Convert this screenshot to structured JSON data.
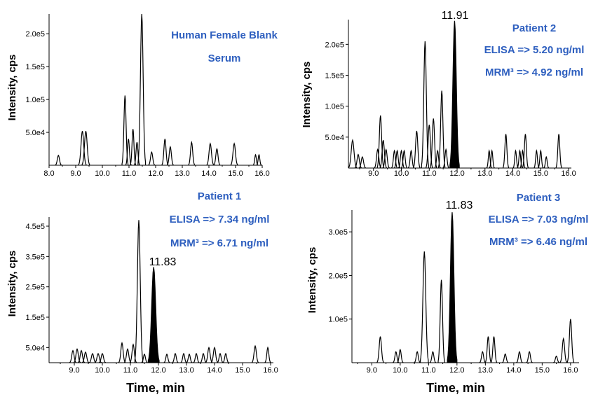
{
  "chart_data": [
    {
      "type": "line",
      "panel": "top-left",
      "title": "",
      "annotations": [
        "Human Female Blank",
        "Serum"
      ],
      "ylabel": "Intensity, cps",
      "xlabel": "",
      "xlim": [
        8.0,
        16.0
      ],
      "ylim": [
        0,
        230000
      ],
      "x_ticks": [
        "8.0",
        "9.0",
        "10.0",
        "11.0",
        "12.0",
        "13.0",
        "14.0",
        "15.0",
        "16.0"
      ],
      "y_ticks": [
        {
          "v": 50000,
          "label": "5.0e4"
        },
        {
          "v": 100000,
          "label": "1.0e5"
        },
        {
          "v": 150000,
          "label": "1.5e5"
        },
        {
          "v": 200000,
          "label": "2.0e5"
        }
      ],
      "peak_label": "",
      "peaks": [
        {
          "x": 8.35,
          "h": 15000,
          "w": 0.04,
          "fill": false
        },
        {
          "x": 9.25,
          "h": 52000,
          "w": 0.05,
          "fill": false
        },
        {
          "x": 9.38,
          "h": 52000,
          "w": 0.05,
          "fill": false
        },
        {
          "x": 10.85,
          "h": 106000,
          "w": 0.04,
          "fill": false
        },
        {
          "x": 10.98,
          "h": 40000,
          "w": 0.035,
          "fill": false
        },
        {
          "x": 11.15,
          "h": 55000,
          "w": 0.035,
          "fill": false
        },
        {
          "x": 11.3,
          "h": 35000,
          "w": 0.035,
          "fill": false
        },
        {
          "x": 11.48,
          "h": 230000,
          "w": 0.05,
          "fill": false
        },
        {
          "x": 11.85,
          "h": 20000,
          "w": 0.04,
          "fill": false
        },
        {
          "x": 12.35,
          "h": 40000,
          "w": 0.04,
          "fill": false
        },
        {
          "x": 12.55,
          "h": 28000,
          "w": 0.04,
          "fill": false
        },
        {
          "x": 13.35,
          "h": 35000,
          "w": 0.04,
          "fill": false
        },
        {
          "x": 14.05,
          "h": 33000,
          "w": 0.045,
          "fill": false
        },
        {
          "x": 14.3,
          "h": 25000,
          "w": 0.04,
          "fill": false
        },
        {
          "x": 14.95,
          "h": 33000,
          "w": 0.045,
          "fill": false
        },
        {
          "x": 15.75,
          "h": 16000,
          "w": 0.03,
          "fill": false
        },
        {
          "x": 15.88,
          "h": 16000,
          "w": 0.03,
          "fill": false
        }
      ]
    },
    {
      "type": "line",
      "panel": "top-right",
      "title": "",
      "annotations": [
        "Patient 2",
        "ELISA => 5.20 ng/ml",
        "MRM³ => 4.92 ng/ml"
      ],
      "ylabel": "Intensity, cps",
      "xlabel": "",
      "xlim": [
        8.1,
        16.1
      ],
      "ylim": [
        0,
        240000
      ],
      "x_ticks": [
        "9.0",
        "10.0",
        "11.0",
        "12.0",
        "13.0",
        "14.0",
        "15.0",
        "16.0"
      ],
      "y_ticks": [
        {
          "v": 50000,
          "label": "5.0e4"
        },
        {
          "v": 100000,
          "label": "1.0e5"
        },
        {
          "v": 150000,
          "label": "1.5e5"
        },
        {
          "v": 200000,
          "label": "2.0e5"
        }
      ],
      "peak_label": "11.91",
      "peaks": [
        {
          "x": 8.25,
          "h": 45000,
          "w": 0.05,
          "fill": false
        },
        {
          "x": 8.45,
          "h": 22000,
          "w": 0.04,
          "fill": false
        },
        {
          "x": 8.6,
          "h": 18000,
          "w": 0.04,
          "fill": false
        },
        {
          "x": 9.15,
          "h": 30000,
          "w": 0.04,
          "fill": false
        },
        {
          "x": 9.25,
          "h": 85000,
          "w": 0.04,
          "fill": false
        },
        {
          "x": 9.35,
          "h": 45000,
          "w": 0.04,
          "fill": false
        },
        {
          "x": 9.45,
          "h": 30000,
          "w": 0.04,
          "fill": false
        },
        {
          "x": 9.75,
          "h": 28000,
          "w": 0.035,
          "fill": false
        },
        {
          "x": 9.85,
          "h": 28000,
          "w": 0.035,
          "fill": false
        },
        {
          "x": 10.0,
          "h": 28000,
          "w": 0.035,
          "fill": false
        },
        {
          "x": 10.1,
          "h": 28000,
          "w": 0.035,
          "fill": false
        },
        {
          "x": 10.35,
          "h": 28000,
          "w": 0.035,
          "fill": false
        },
        {
          "x": 10.55,
          "h": 60000,
          "w": 0.04,
          "fill": false
        },
        {
          "x": 10.85,
          "h": 205000,
          "w": 0.045,
          "fill": false
        },
        {
          "x": 11.0,
          "h": 70000,
          "w": 0.04,
          "fill": false
        },
        {
          "x": 11.15,
          "h": 80000,
          "w": 0.04,
          "fill": false
        },
        {
          "x": 11.3,
          "h": 28000,
          "w": 0.035,
          "fill": false
        },
        {
          "x": 11.45,
          "h": 125000,
          "w": 0.04,
          "fill": false
        },
        {
          "x": 11.6,
          "h": 30000,
          "w": 0.035,
          "fill": false
        },
        {
          "x": 11.91,
          "h": 238000,
          "w": 0.06,
          "fill": true
        },
        {
          "x": 13.15,
          "h": 28000,
          "w": 0.03,
          "fill": false
        },
        {
          "x": 13.25,
          "h": 28000,
          "w": 0.03,
          "fill": false
        },
        {
          "x": 13.75,
          "h": 55000,
          "w": 0.035,
          "fill": false
        },
        {
          "x": 14.1,
          "h": 28000,
          "w": 0.03,
          "fill": false
        },
        {
          "x": 14.25,
          "h": 28000,
          "w": 0.03,
          "fill": false
        },
        {
          "x": 14.35,
          "h": 28000,
          "w": 0.03,
          "fill": false
        },
        {
          "x": 14.45,
          "h": 55000,
          "w": 0.035,
          "fill": false
        },
        {
          "x": 14.85,
          "h": 28000,
          "w": 0.03,
          "fill": false
        },
        {
          "x": 15.0,
          "h": 28000,
          "w": 0.03,
          "fill": false
        },
        {
          "x": 15.2,
          "h": 18000,
          "w": 0.03,
          "fill": false
        },
        {
          "x": 15.65,
          "h": 55000,
          "w": 0.035,
          "fill": false
        }
      ]
    },
    {
      "type": "line",
      "panel": "bottom-left",
      "title": "",
      "annotations": [
        "Patient 1",
        "ELISA => 7.34 ng/ml",
        "MRM³ => 6.71 ng/ml"
      ],
      "ylabel": "Intensity, cps",
      "xlabel": "Time, min",
      "xlim": [
        8.1,
        16.1
      ],
      "ylim": [
        0,
        480000
      ],
      "x_ticks": [
        "9.0",
        "10.0",
        "11.0",
        "12.0",
        "13.0",
        "14.0",
        "15.0",
        "16.0"
      ],
      "y_ticks": [
        {
          "v": 50000,
          "label": "5.0e4"
        },
        {
          "v": 150000,
          "label": "1.5e5"
        },
        {
          "v": 250000,
          "label": "2.5e5"
        },
        {
          "v": 350000,
          "label": "3.5e5"
        },
        {
          "v": 450000,
          "label": "4.5e5"
        }
      ],
      "peak_label": "11.83",
      "peaks": [
        {
          "x": 8.95,
          "h": 40000,
          "w": 0.04,
          "fill": false
        },
        {
          "x": 9.1,
          "h": 45000,
          "w": 0.04,
          "fill": false
        },
        {
          "x": 9.25,
          "h": 40000,
          "w": 0.04,
          "fill": false
        },
        {
          "x": 9.4,
          "h": 35000,
          "w": 0.04,
          "fill": false
        },
        {
          "x": 9.65,
          "h": 30000,
          "w": 0.04,
          "fill": false
        },
        {
          "x": 9.85,
          "h": 30000,
          "w": 0.04,
          "fill": false
        },
        {
          "x": 10.0,
          "h": 30000,
          "w": 0.04,
          "fill": false
        },
        {
          "x": 10.7,
          "h": 65000,
          "w": 0.04,
          "fill": false
        },
        {
          "x": 10.9,
          "h": 45000,
          "w": 0.04,
          "fill": false
        },
        {
          "x": 11.1,
          "h": 60000,
          "w": 0.04,
          "fill": false
        },
        {
          "x": 11.3,
          "h": 470000,
          "w": 0.05,
          "fill": false
        },
        {
          "x": 11.5,
          "h": 28000,
          "w": 0.035,
          "fill": false
        },
        {
          "x": 11.83,
          "h": 315000,
          "w": 0.07,
          "fill": true
        },
        {
          "x": 12.3,
          "h": 28000,
          "w": 0.035,
          "fill": false
        },
        {
          "x": 12.6,
          "h": 30000,
          "w": 0.035,
          "fill": false
        },
        {
          "x": 12.9,
          "h": 30000,
          "w": 0.035,
          "fill": false
        },
        {
          "x": 13.1,
          "h": 28000,
          "w": 0.035,
          "fill": false
        },
        {
          "x": 13.35,
          "h": 30000,
          "w": 0.035,
          "fill": false
        },
        {
          "x": 13.6,
          "h": 30000,
          "w": 0.035,
          "fill": false
        },
        {
          "x": 13.8,
          "h": 50000,
          "w": 0.04,
          "fill": false
        },
        {
          "x": 14.0,
          "h": 50000,
          "w": 0.04,
          "fill": false
        },
        {
          "x": 14.2,
          "h": 30000,
          "w": 0.035,
          "fill": false
        },
        {
          "x": 14.4,
          "h": 30000,
          "w": 0.035,
          "fill": false
        },
        {
          "x": 15.45,
          "h": 55000,
          "w": 0.04,
          "fill": false
        },
        {
          "x": 15.9,
          "h": 50000,
          "w": 0.035,
          "fill": false
        }
      ]
    },
    {
      "type": "line",
      "panel": "bottom-right",
      "title": "",
      "annotations": [
        "Patient 3",
        "ELISA => 7.03 ng/ml",
        "MRM³ => 6.46 ng/ml"
      ],
      "ylabel": "Intensity, cps",
      "xlabel": "Time, min",
      "xlim": [
        8.3,
        16.3
      ],
      "ylim": [
        0,
        350000
      ],
      "x_ticks": [
        "9.0",
        "10.0",
        "11.0",
        "12.0",
        "13.0",
        "14.0",
        "15.0",
        "16.0"
      ],
      "y_ticks": [
        {
          "v": 100000,
          "label": "1.0e5"
        },
        {
          "v": 200000,
          "label": "2.0e5"
        },
        {
          "v": 300000,
          "label": "3.0e5"
        }
      ],
      "peak_label": "11.83",
      "peaks": [
        {
          "x": 9.3,
          "h": 60000,
          "w": 0.04,
          "fill": false
        },
        {
          "x": 9.85,
          "h": 25000,
          "w": 0.035,
          "fill": false
        },
        {
          "x": 10.0,
          "h": 30000,
          "w": 0.035,
          "fill": false
        },
        {
          "x": 10.6,
          "h": 25000,
          "w": 0.035,
          "fill": false
        },
        {
          "x": 10.85,
          "h": 255000,
          "w": 0.05,
          "fill": false
        },
        {
          "x": 11.15,
          "h": 25000,
          "w": 0.035,
          "fill": false
        },
        {
          "x": 11.45,
          "h": 190000,
          "w": 0.04,
          "fill": false
        },
        {
          "x": 11.83,
          "h": 345000,
          "w": 0.06,
          "fill": true
        },
        {
          "x": 12.9,
          "h": 25000,
          "w": 0.035,
          "fill": false
        },
        {
          "x": 13.1,
          "h": 60000,
          "w": 0.035,
          "fill": false
        },
        {
          "x": 13.3,
          "h": 60000,
          "w": 0.035,
          "fill": false
        },
        {
          "x": 13.7,
          "h": 20000,
          "w": 0.035,
          "fill": false
        },
        {
          "x": 14.2,
          "h": 25000,
          "w": 0.035,
          "fill": false
        },
        {
          "x": 14.55,
          "h": 25000,
          "w": 0.035,
          "fill": false
        },
        {
          "x": 15.5,
          "h": 15000,
          "w": 0.035,
          "fill": false
        },
        {
          "x": 15.75,
          "h": 55000,
          "w": 0.04,
          "fill": false
        },
        {
          "x": 16.0,
          "h": 100000,
          "w": 0.04,
          "fill": false
        }
      ]
    }
  ],
  "colors": {
    "annotation": "#2e5fbf",
    "trace": "#000000"
  }
}
